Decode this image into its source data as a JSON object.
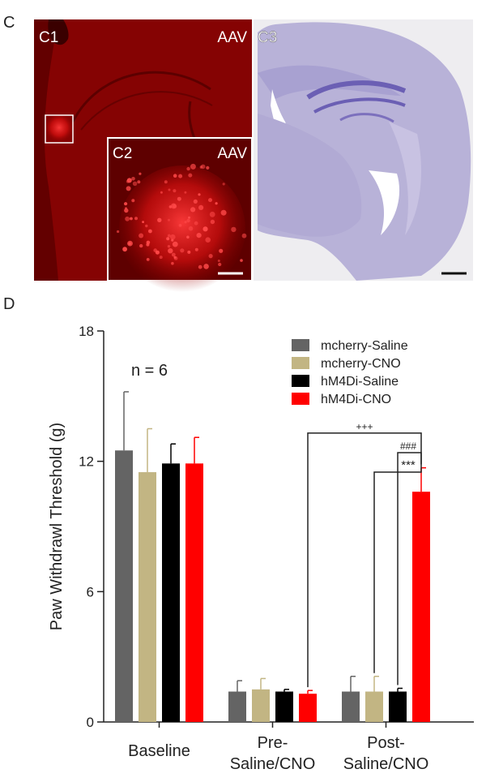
{
  "panel_c": {
    "letter": "C",
    "c1": {
      "label": "C1",
      "tag": "AAV"
    },
    "c2": {
      "label": "C2",
      "tag": "AAV"
    },
    "c3": {
      "label": "C3"
    }
  },
  "panel_d": {
    "letter": "D"
  },
  "chart_data": {
    "type": "bar",
    "ylabel": "Paw Withdrawl Threshold (g)",
    "xlabel": "",
    "ylim": [
      0,
      18
    ],
    "yticks": [
      0,
      6,
      12,
      18
    ],
    "annotation": "n = 6",
    "categories": [
      "Baseline",
      "Pre-\nSaline/CNO",
      "Post-\nSaline/CNO"
    ],
    "legend_position": "top-right",
    "series": [
      {
        "name": "mcherry-Saline",
        "color": "#646464",
        "values": [
          12.5,
          1.4,
          1.4
        ],
        "errors": [
          2.7,
          0.5,
          0.7
        ]
      },
      {
        "name": "mcherry-CNO",
        "color": "#c2b583",
        "values": [
          11.5,
          1.5,
          1.4
        ],
        "errors": [
          2.0,
          0.5,
          0.7
        ]
      },
      {
        "name": "hM4Di-Saline",
        "color": "#000000",
        "values": [
          11.9,
          1.4,
          1.4
        ],
        "errors": [
          0.9,
          0.1,
          0.15
        ]
      },
      {
        "name": "hM4Di-CNO",
        "color": "#ff0000",
        "values": [
          11.9,
          1.3,
          10.6
        ],
        "errors": [
          1.2,
          0.15,
          1.1
        ]
      }
    ],
    "significance": [
      {
        "text": "+++",
        "from": [
          1,
          3
        ],
        "to": [
          2,
          3
        ]
      },
      {
        "text": "###",
        "from": [
          2,
          2
        ],
        "to": [
          2,
          3
        ]
      },
      {
        "text": "***",
        "from": [
          2,
          1
        ],
        "to": [
          2,
          3
        ]
      }
    ]
  }
}
